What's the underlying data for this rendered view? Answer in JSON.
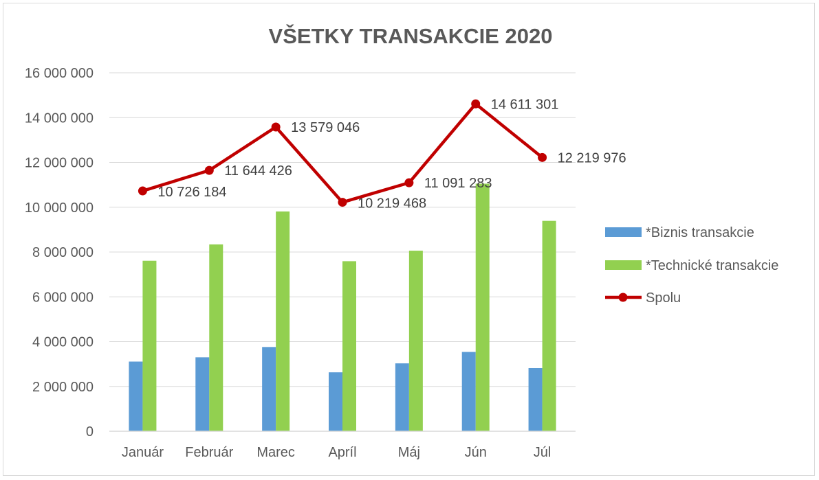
{
  "chart_data": {
    "type": "bar",
    "title": "VŠETKY TRANSAKCIE 2020",
    "xlabel": "",
    "ylabel": "",
    "categories": [
      "Január",
      "Február",
      "Marec",
      "Apríl",
      "Máj",
      "Jún",
      "Júl"
    ],
    "ylim": [
      0,
      16000000
    ],
    "yticks": [
      0,
      2000000,
      4000000,
      6000000,
      8000000,
      10000000,
      12000000,
      14000000,
      16000000
    ],
    "ytick_labels": [
      "0",
      "2 000 000",
      "4 000 000",
      "6 000 000",
      "8 000 000",
      "10 000 000",
      "12 000 000",
      "14 000 000",
      "16 000 000"
    ],
    "grid": "horizontal",
    "legend_position": "right",
    "series": [
      {
        "name": "*Biznis transakcie",
        "type": "bar",
        "color": "#5b9bd5",
        "values": [
          3110000,
          3300000,
          3760000,
          2630000,
          3030000,
          3540000,
          2820000
        ]
      },
      {
        "name": "*Technické transakcie",
        "type": "bar",
        "color": "#92d050",
        "values": [
          7610000,
          8340000,
          9810000,
          7590000,
          8060000,
          11050000,
          9390000
        ]
      },
      {
        "name": "Spolu",
        "type": "line",
        "color": "#c00000",
        "values": [
          10726184,
          11644426,
          13579046,
          10219468,
          11091283,
          14611301,
          12219976
        ],
        "data_labels": [
          "10 726 184",
          "11 644 426",
          "13 579 046",
          "10 219 468",
          "11 091 283",
          "14 611 301",
          "12 219 976"
        ]
      }
    ]
  }
}
